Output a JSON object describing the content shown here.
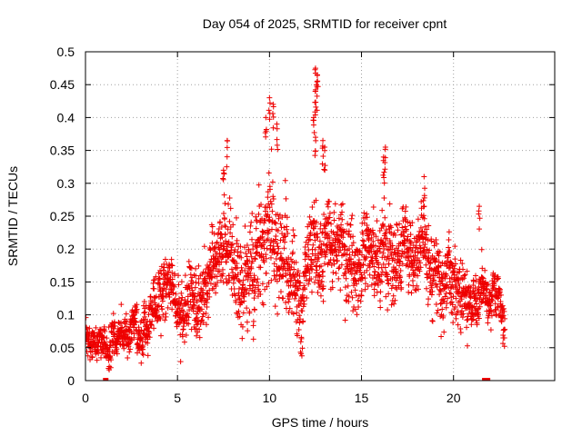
{
  "chart_data": {
    "type": "scatter",
    "title": "Day 054 of 2025, SRMTID for receiver cpnt",
    "xlabel": "GPS time / hours",
    "ylabel": "SRMTID / TECUs",
    "xlim": [
      0,
      25.5
    ],
    "ylim": [
      0,
      0.5
    ],
    "x_ticks": [
      0,
      5,
      10,
      15,
      20
    ],
    "x_tick_labels": [
      "0",
      "5",
      "10",
      "15",
      "20"
    ],
    "y_ticks": [
      0,
      0.05,
      0.1,
      0.15,
      0.2,
      0.25,
      0.3,
      0.35,
      0.4,
      0.45,
      0.5
    ],
    "y_tick_labels": [
      "0",
      "0.05",
      "0.1",
      "0.15",
      "0.2",
      "0.25",
      "0.3",
      "0.35",
      "0.4",
      "0.45",
      "0.5"
    ],
    "grid": true,
    "marker": "+",
    "marker_color": "#ee0000",
    "series": [
      {
        "name": "SRMTID",
        "profile": {
          "x": [
            0,
            0.5,
            1,
            1.5,
            2,
            2.5,
            3,
            3.5,
            4,
            4.5,
            5,
            5.5,
            6,
            6.5,
            7,
            7.5,
            8,
            8.5,
            9,
            9.5,
            10,
            10.5,
            11,
            11.5,
            12,
            12.5,
            13,
            13.5,
            14,
            14.5,
            15,
            15.5,
            16,
            16.5,
            17,
            17.5,
            18,
            18.5,
            19,
            19.5,
            20,
            20.5,
            21,
            21.5,
            22,
            22.5,
            22.8
          ],
          "center": [
            0.065,
            0.06,
            0.055,
            0.06,
            0.065,
            0.065,
            0.07,
            0.08,
            0.12,
            0.15,
            0.11,
            0.12,
            0.13,
            0.14,
            0.16,
            0.2,
            0.17,
            0.15,
            0.14,
            0.2,
            0.22,
            0.2,
            0.19,
            0.14,
            0.17,
            0.2,
            0.2,
            0.18,
            0.19,
            0.17,
            0.18,
            0.2,
            0.21,
            0.2,
            0.19,
            0.18,
            0.2,
            0.19,
            0.16,
            0.15,
            0.14,
            0.13,
            0.12,
            0.13,
            0.12,
            0.12,
            0.08
          ],
          "spread": [
            0.02,
            0.02,
            0.02,
            0.025,
            0.025,
            0.025,
            0.03,
            0.035,
            0.04,
            0.04,
            0.035,
            0.04,
            0.045,
            0.05,
            0.05,
            0.055,
            0.06,
            0.06,
            0.06,
            0.065,
            0.065,
            0.06,
            0.06,
            0.055,
            0.06,
            0.06,
            0.06,
            0.055,
            0.055,
            0.055,
            0.055,
            0.055,
            0.055,
            0.055,
            0.05,
            0.05,
            0.05,
            0.05,
            0.045,
            0.045,
            0.04,
            0.04,
            0.035,
            0.035,
            0.03,
            0.03,
            0.025
          ]
        },
        "peaks": [
          {
            "x": 7.5,
            "y": 0.32
          },
          {
            "x": 7.7,
            "y": 0.365
          },
          {
            "x": 9.8,
            "y": 0.4
          },
          {
            "x": 10.0,
            "y": 0.43
          },
          {
            "x": 10.2,
            "y": 0.42
          },
          {
            "x": 10.4,
            "y": 0.39
          },
          {
            "x": 12.5,
            "y": 0.475
          },
          {
            "x": 12.6,
            "y": 0.465
          },
          {
            "x": 12.55,
            "y": 0.45
          },
          {
            "x": 12.5,
            "y": 0.44
          },
          {
            "x": 12.4,
            "y": 0.4
          },
          {
            "x": 12.5,
            "y": 0.37
          },
          {
            "x": 12.9,
            "y": 0.365
          },
          {
            "x": 13.0,
            "y": 0.355
          },
          {
            "x": 16.3,
            "y": 0.355
          },
          {
            "x": 16.2,
            "y": 0.34
          },
          {
            "x": 18.4,
            "y": 0.31
          },
          {
            "x": 21.4,
            "y": 0.265
          }
        ],
        "zeros": [
          1.1,
          21.7,
          21.75,
          21.8,
          21.85
        ]
      }
    ]
  }
}
